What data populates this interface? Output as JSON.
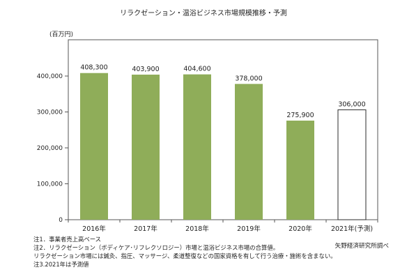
{
  "chart_data": {
    "type": "bar",
    "title": "リラクゼーション・温浴ビジネス市場規模推移・予測",
    "unit_label": "(百万円)",
    "categories": [
      "2016年",
      "2017年",
      "2018年",
      "2019年",
      "2020年",
      "2021年(予測)"
    ],
    "values": [
      408300,
      403900,
      404600,
      378000,
      275900,
      306000
    ],
    "value_labels": [
      "408,300",
      "403,900",
      "404,600",
      "378,000",
      "275,900",
      "306,000"
    ],
    "forecast": [
      false,
      false,
      false,
      false,
      false,
      true
    ],
    "ylim": [
      0,
      500000
    ],
    "yticks": [
      0,
      100000,
      200000,
      300000,
      400000
    ],
    "ytick_labels": [
      "0",
      "100,000",
      "200,000",
      "300,000",
      "400,000"
    ],
    "grid": false,
    "colors": {
      "actual": "#8fad59",
      "forecast": "#ffffff",
      "bar_edge": "#2b2b2b"
    }
  },
  "notes": [
    "注1．事業者売上高ベース",
    "注2．リラクゼーション（ボディケア･リフレクソロジー）市場と温浴ビジネス市場の合算値。",
    "リラクゼーション市場には鍼灸、指圧、マッサージ、柔道整復などの国家資格を有して行う治療・施術を含まない。",
    "注3.2021年は予測値"
  ],
  "source": "矢野経済研究所調べ"
}
